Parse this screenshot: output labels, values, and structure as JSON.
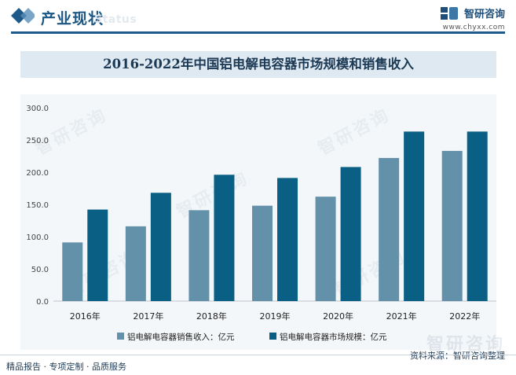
{
  "header": {
    "section_title": "产业现状",
    "section_ghost": "Status",
    "brand_name": "智研咨询",
    "brand_url": "www.chyxx.com"
  },
  "watermark_text": "智研咨询",
  "chart_data": {
    "type": "bar",
    "title": "2016-2022年中国铝电解电容器市场规模和销售收入",
    "categories": [
      "2016年",
      "2017年",
      "2018年",
      "2019年",
      "2020年",
      "2021年",
      "2022年"
    ],
    "series": [
      {
        "name": "铝电解电容器销售收入：亿元",
        "color": "#6391aa",
        "values": [
          91,
          116,
          141,
          148,
          162,
          222,
          233
        ]
      },
      {
        "name": "铝电解电容器市场规模：亿元",
        "color": "#0a5f85",
        "values": [
          142,
          168,
          196,
          191,
          208,
          263,
          263
        ]
      }
    ],
    "ylim": [
      0,
      300
    ],
    "yticks": [
      "0.0",
      "50.0",
      "100.0",
      "150.0",
      "200.0",
      "250.0",
      "300.0"
    ],
    "xlabel": "",
    "ylabel": "",
    "legend": "bottom"
  },
  "footer": {
    "left": "精品报告 · 专项定制 · 品质服务",
    "right": "资料来源：智研咨询整理",
    "watermark": "智研咨询"
  }
}
